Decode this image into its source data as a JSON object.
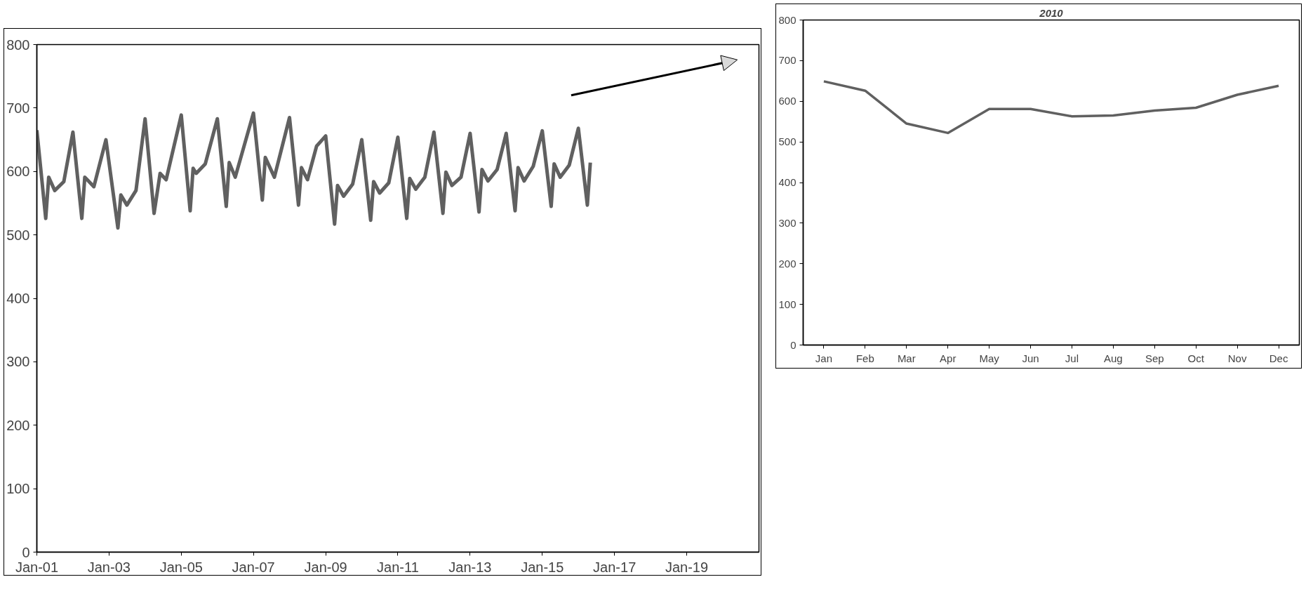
{
  "chart_data": [
    {
      "type": "line",
      "x": [
        "2001-01",
        "2001-04",
        "2001-05",
        "2001-07",
        "2001-10",
        "2002-01",
        "2002-04",
        "2002-05",
        "2002-08",
        "2002-12",
        "2003-04",
        "2003-05",
        "2003-07",
        "2003-10",
        "2004-01",
        "2004-04",
        "2004-06",
        "2004-08",
        "2005-01",
        "2005-04",
        "2005-05",
        "2005-06",
        "2005-09",
        "2006-01",
        "2006-04",
        "2006-05",
        "2006-07",
        "2007-01",
        "2007-04",
        "2007-05",
        "2007-08",
        "2008-01",
        "2008-04",
        "2008-05",
        "2008-07",
        "2008-10",
        "2009-01",
        "2009-04",
        "2009-05",
        "2009-07",
        "2009-10",
        "2010-01",
        "2010-04",
        "2010-05",
        "2010-07",
        "2010-10",
        "2011-01",
        "2011-04",
        "2011-05",
        "2011-07",
        "2011-10",
        "2012-01",
        "2012-04",
        "2012-05",
        "2012-07",
        "2012-10",
        "2013-01",
        "2013-04",
        "2013-05",
        "2013-07",
        "2013-10",
        "2014-01",
        "2014-04",
        "2014-05",
        "2014-07",
        "2014-10",
        "2015-01",
        "2015-04",
        "2015-05",
        "2015-07",
        "2015-10",
        "2016-01",
        "2016-04",
        "2016-05"
      ],
      "series": [
        {
          "color": "#606060",
          "values": [
            665,
            526,
            591,
            570,
            584,
            662,
            526,
            591,
            576,
            650,
            511,
            563,
            547,
            570,
            683,
            534,
            597,
            587,
            689,
            538,
            605,
            597,
            612,
            683,
            545,
            614,
            591,
            692,
            555,
            622,
            591,
            685,
            547,
            606,
            587,
            640,
            656,
            517,
            578,
            561,
            580,
            650,
            523,
            584,
            566,
            582,
            654,
            526,
            589,
            572,
            591,
            662,
            534,
            599,
            578,
            591,
            660,
            536,
            603,
            585,
            603,
            660,
            538,
            606,
            585,
            608,
            664,
            545,
            612,
            591,
            610,
            668,
            547,
            614
          ]
        }
      ],
      "xlim": [
        "2001-01",
        "2021-01"
      ],
      "xticks": [
        {
          "value": "2001-01",
          "label": "Jan-01"
        },
        {
          "value": "2003-01",
          "label": "Jan-03"
        },
        {
          "value": "2005-01",
          "label": "Jan-05"
        },
        {
          "value": "2007-01",
          "label": "Jan-07"
        },
        {
          "value": "2009-01",
          "label": "Jan-09"
        },
        {
          "value": "2011-01",
          "label": "Jan-11"
        },
        {
          "value": "2013-01",
          "label": "Jan-13"
        },
        {
          "value": "2015-01",
          "label": "Jan-15"
        },
        {
          "value": "2017-01",
          "label": "Jan-17"
        },
        {
          "value": "2019-01",
          "label": "Jan-19"
        }
      ],
      "ylim": [
        0,
        800
      ],
      "yticks": [
        0,
        100,
        200,
        300,
        400,
        500,
        600,
        700,
        800
      ],
      "line_style": "solid"
    },
    {
      "type": "line",
      "title": "2010",
      "categories": [
        "Jan",
        "Feb",
        "Mar",
        "Apr",
        "May",
        "Jun",
        "Jul",
        "Aug",
        "Sep",
        "Oct",
        "Nov",
        "Dec"
      ],
      "series": [
        {
          "color": "#606060",
          "values": [
            649,
            626,
            545,
            522,
            581,
            581,
            563,
            565,
            577,
            584,
            616,
            638
          ]
        }
      ],
      "ylim": [
        0,
        800
      ],
      "yticks": [
        0,
        100,
        200,
        300,
        400,
        500,
        600,
        700,
        800
      ],
      "line_style": "solid"
    }
  ]
}
